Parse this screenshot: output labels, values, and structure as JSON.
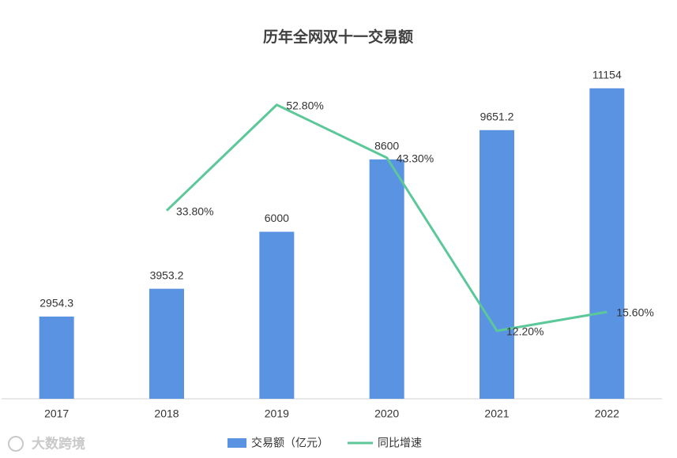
{
  "chart_data": {
    "type": "bar_line",
    "title": "历年全网双十一交易额",
    "categories": [
      "2017",
      "2018",
      "2019",
      "2020",
      "2021",
      "2022"
    ],
    "series": [
      {
        "name": "交易额（亿元）",
        "type": "bar",
        "color": "#5b93e3",
        "values": [
          2954.3,
          3953.2,
          6000,
          8600,
          9651.2,
          11154
        ]
      },
      {
        "name": "同比增速",
        "type": "line",
        "axis": "y2",
        "color": "#5cc89a",
        "values": [
          null,
          33.8,
          52.8,
          43.3,
          12.2,
          15.6
        ],
        "value_labels": [
          null,
          "33.80%",
          "52.80%",
          "43.30%",
          "12.20%",
          "15.60%"
        ]
      }
    ],
    "ylim": [
      0,
      12000
    ],
    "y2lim": [
      0,
      60
    ],
    "legend": "bottom"
  },
  "watermark": "大数跨境"
}
